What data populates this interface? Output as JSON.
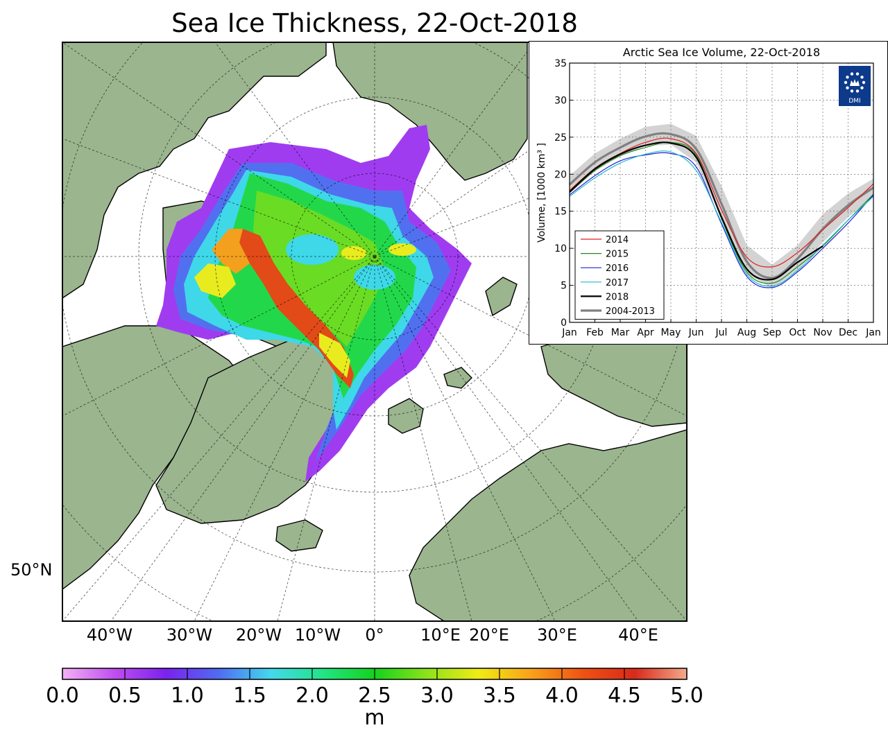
{
  "map": {
    "title": "Sea Ice Thickness, 22-Oct-2018",
    "lat_label": "50°N",
    "lon_labels": [
      "40°W",
      "30°W",
      "20°W",
      "10°W",
      "0°",
      "10°E",
      "20°E",
      "30°E",
      "40°E"
    ],
    "land_color": "#9bb58f",
    "ocean_color": "#ffffff"
  },
  "colorbar": {
    "unit": "m",
    "ticks": [
      "0.0",
      "0.5",
      "1.0",
      "1.5",
      "2.0",
      "2.5",
      "3.0",
      "3.5",
      "4.0",
      "4.5",
      "5.0"
    ],
    "range": [
      0,
      5
    ],
    "colors": [
      "#f4b2f4",
      "#c04ef0",
      "#7a22ee",
      "#4f6cf2",
      "#44d8ee",
      "#22e486",
      "#14d21c",
      "#8ce21a",
      "#f0ec14",
      "#f8a21a",
      "#ee5214",
      "#d82a1a",
      "#f4aa8c"
    ]
  },
  "chart_data": {
    "type": "line",
    "title": "Arctic Sea Ice Volume, 22-Oct-2018",
    "ylabel": "Volume, [1000 km³ ]",
    "xlabel": "",
    "ylim": [
      0,
      35
    ],
    "yticks": [
      "0",
      "5",
      "10",
      "15",
      "20",
      "25",
      "30",
      "35"
    ],
    "xticks": [
      "Jan",
      "Feb",
      "Mar",
      "Apr",
      "May",
      "Jun",
      "Jul",
      "Aug",
      "Sep",
      "Oct",
      "Nov",
      "Dec",
      "Jan"
    ],
    "grid": true,
    "legend_position": "bottom-left",
    "logo_text": "DMI",
    "x": [
      "Jan-01",
      "Feb-01",
      "Mar-01",
      "Apr-01",
      "May-01",
      "Jun-01",
      "Jul-01",
      "Aug-01",
      "Sep-01",
      "Oct-01",
      "Nov-01",
      "Dec-01",
      "Jan-01"
    ],
    "series": [
      {
        "name": "2014",
        "color": "#e41a1c",
        "width": 1.2,
        "values": [
          17.8,
          20.8,
          22.8,
          24.3,
          24.8,
          22.8,
          15.2,
          8.8,
          7.5,
          9.4,
          12.5,
          15.5,
          18.7
        ]
      },
      {
        "name": "2015",
        "color": "#1e8a1e",
        "width": 1.2,
        "values": [
          17.5,
          20.5,
          22.5,
          23.6,
          24.3,
          22.6,
          14.0,
          6.8,
          5.3,
          7.5,
          10.3,
          13.8,
          17.3
        ]
      },
      {
        "name": "2016",
        "color": "#1f1fd6",
        "width": 1.2,
        "values": [
          17.2,
          19.8,
          21.8,
          22.6,
          22.8,
          21.0,
          13.3,
          6.2,
          4.7,
          6.8,
          10.0,
          13.4,
          17.2
        ]
      },
      {
        "name": "2017",
        "color": "#20b8c8",
        "width": 1.2,
        "values": [
          17.0,
          19.5,
          21.5,
          22.7,
          23.0,
          20.5,
          13.5,
          6.5,
          4.9,
          7.0,
          10.4,
          13.8,
          17.0
        ]
      },
      {
        "name": "2018",
        "color": "#000000",
        "width": 2.2,
        "values": [
          17.6,
          20.7,
          22.7,
          23.9,
          24.2,
          22.3,
          14.2,
          7.2,
          5.8,
          8.1,
          10.3,
          null,
          null
        ]
      },
      {
        "name": "2004-2013",
        "color": "#808080",
        "width": 3.2,
        "values": [
          18.6,
          21.6,
          23.6,
          25.1,
          25.4,
          23.4,
          16.0,
          8.2,
          6.0,
          8.6,
          12.6,
          15.8,
          18.2
        ]
      }
    ],
    "band_2004_2013": {
      "color": "#d3d3d3",
      "upper": [
        19.8,
        22.8,
        24.8,
        26.4,
        26.8,
        25.2,
        18.4,
        10.4,
        7.8,
        10.4,
        14.6,
        17.4,
        19.4
      ],
      "lower": [
        17.4,
        20.4,
        22.4,
        23.8,
        24.0,
        21.6,
        14.0,
        6.6,
        4.6,
        7.0,
        10.8,
        14.2,
        17.0
      ]
    }
  }
}
